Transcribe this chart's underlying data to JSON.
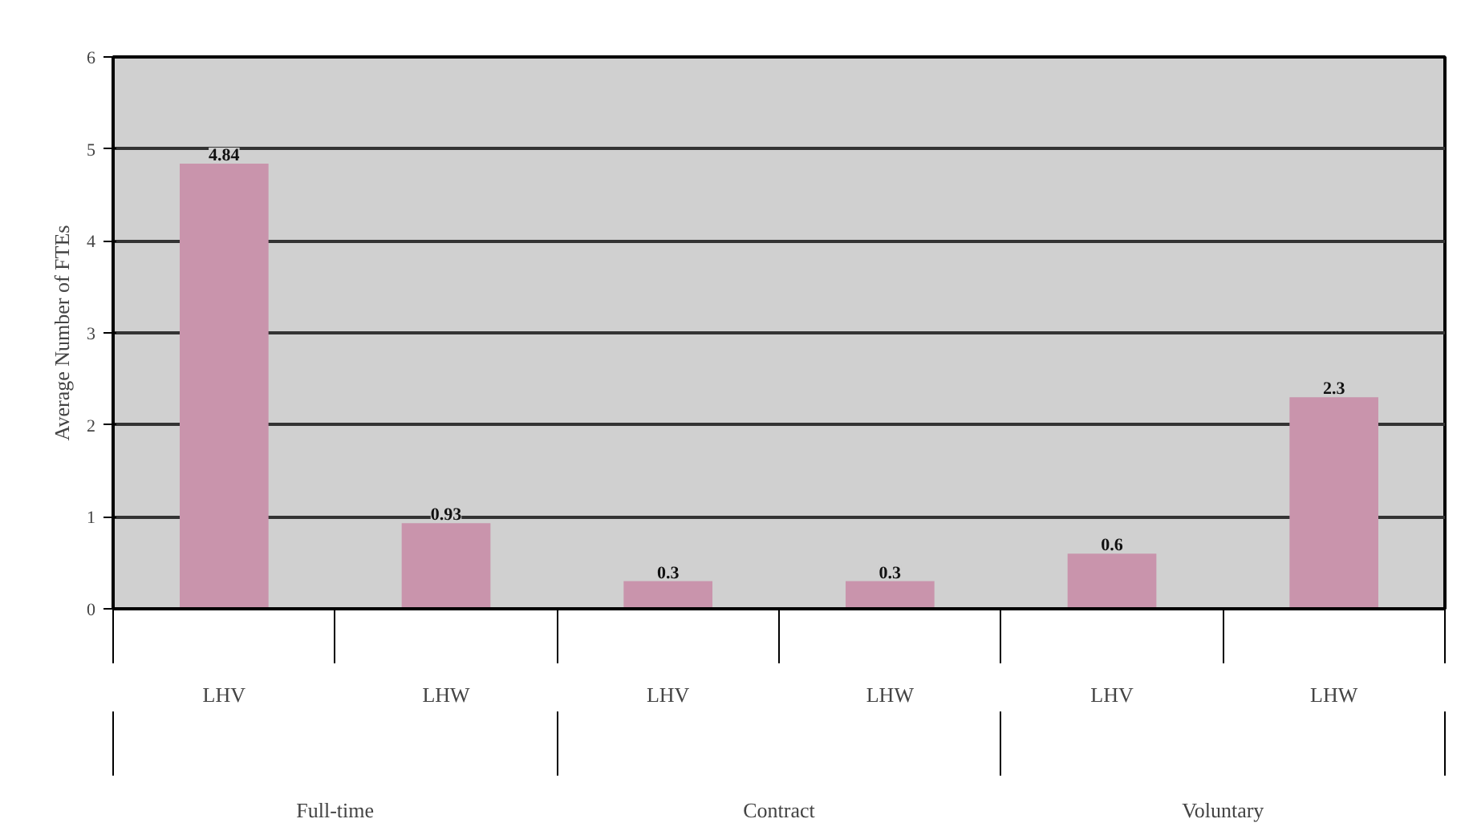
{
  "chart_data": {
    "type": "bar",
    "ylabel": "Average Number of FTEs",
    "categories": [
      "LHV",
      "LHW",
      "LHV",
      "LHW",
      "LHV",
      "LHW"
    ],
    "values": [
      4.84,
      0.93,
      0.3,
      0.3,
      0.6,
      2.3
    ],
    "color": "#c994ac",
    "ylim": [
      0,
      6
    ],
    "yticks": [
      0,
      1,
      2,
      3,
      4,
      5,
      6
    ],
    "grid": "y",
    "data_labels": true,
    "annotations": [
      "Full-time",
      "Contract",
      "Voluntary"
    ]
  }
}
